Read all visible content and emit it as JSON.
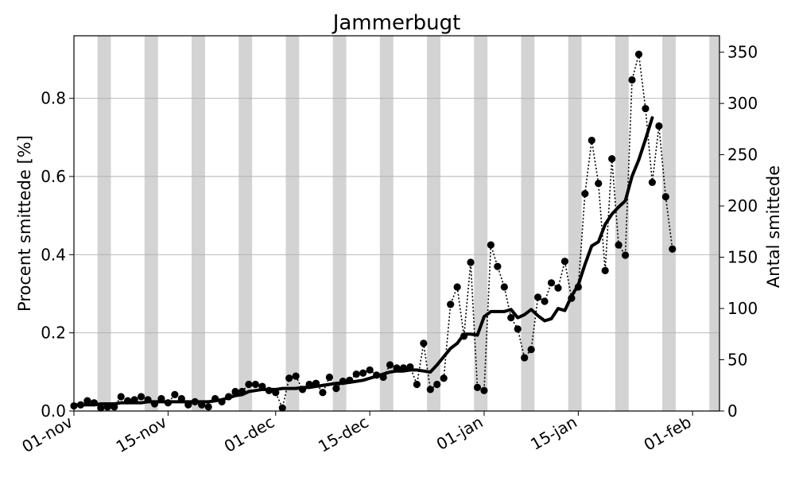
{
  "chart_data": {
    "type": "line",
    "title": "Jammerbugt",
    "ylabel_left": "Procent smittede [%]",
    "ylabel_right": "Antal smittede",
    "x_start": "2020-11-01",
    "x_range": [
      "2020-11-01",
      "2021-02-05"
    ],
    "ylim_left": [
      0,
      0.96
    ],
    "ylim_right": [
      0,
      366
    ],
    "yticks_left": [
      "0.0",
      "0.2",
      "0.4",
      "0.6",
      "0.8"
    ],
    "yticks_right": [
      "0",
      "50",
      "100",
      "150",
      "200",
      "250",
      "300",
      "350"
    ],
    "xticks": [
      {
        "date": "2020-11-01",
        "label": "01-nov"
      },
      {
        "date": "2020-11-15",
        "label": "15-nov"
      },
      {
        "date": "2020-12-01",
        "label": "01-dec"
      },
      {
        "date": "2020-12-15",
        "label": "15-dec"
      },
      {
        "date": "2021-01-01",
        "label": "01-jan"
      },
      {
        "date": "2021-01-15",
        "label": "15-jan"
      },
      {
        "date": "2021-02-01",
        "label": "01-feb"
      }
    ],
    "weekend_bands": [
      "2020-11-05",
      "2020-11-12",
      "2020-11-19",
      "2020-11-26",
      "2020-12-03",
      "2020-12-10",
      "2020-12-17",
      "2020-12-24",
      "2020-12-31",
      "2021-01-07",
      "2021-01-14",
      "2021-01-21",
      "2021-01-28",
      "2021-02-04"
    ],
    "grid": true,
    "series": [
      {
        "style": "dotted-markers",
        "axis": "right",
        "dates": [
          "2020-11-01",
          "2020-11-02",
          "2020-11-03",
          "2020-11-04",
          "2020-11-05",
          "2020-11-06",
          "2020-11-07",
          "2020-11-08",
          "2020-11-09",
          "2020-11-10",
          "2020-11-11",
          "2020-11-12",
          "2020-11-13",
          "2020-11-14",
          "2020-11-15",
          "2020-11-16",
          "2020-11-17",
          "2020-11-18",
          "2020-11-19",
          "2020-11-20",
          "2020-11-21",
          "2020-11-22",
          "2020-11-23",
          "2020-11-24",
          "2020-11-25",
          "2020-11-26",
          "2020-11-27",
          "2020-11-28",
          "2020-11-29",
          "2020-11-30",
          "2020-12-01",
          "2020-12-02",
          "2020-12-03",
          "2020-12-04",
          "2020-12-05",
          "2020-12-06",
          "2020-12-07",
          "2020-12-08",
          "2020-12-09",
          "2020-12-10",
          "2020-12-11",
          "2020-12-12",
          "2020-12-13",
          "2020-12-14",
          "2020-12-15",
          "2020-12-16",
          "2020-12-17",
          "2020-12-18",
          "2020-12-19",
          "2020-12-20",
          "2020-12-21",
          "2020-12-22",
          "2020-12-23",
          "2020-12-24",
          "2020-12-25",
          "2020-12-26",
          "2020-12-27",
          "2020-12-28",
          "2020-12-29",
          "2020-12-30",
          "2020-12-31",
          "2021-01-01",
          "2021-01-02",
          "2021-01-03",
          "2021-01-04",
          "2021-01-05",
          "2021-01-06",
          "2021-01-07",
          "2021-01-08",
          "2021-01-09",
          "2021-01-10",
          "2021-01-11",
          "2021-01-12",
          "2021-01-13",
          "2021-01-14",
          "2021-01-15",
          "2021-01-16",
          "2021-01-17",
          "2021-01-18",
          "2021-01-19",
          "2021-01-20",
          "2021-01-21",
          "2021-01-22",
          "2021-01-23",
          "2021-01-24",
          "2021-01-25",
          "2021-01-26",
          "2021-01-27",
          "2021-01-28",
          "2021-01-29"
        ],
        "values": [
          5,
          6,
          10,
          8,
          3,
          4,
          4,
          14,
          10,
          11,
          14,
          11,
          7,
          12,
          8,
          16,
          12,
          6,
          9,
          6,
          4,
          12,
          9,
          14,
          19,
          19,
          26,
          26,
          24,
          20,
          18,
          3,
          32,
          34,
          21,
          26,
          27,
          18,
          33,
          22,
          29,
          30,
          36,
          37,
          40,
          35,
          33,
          45,
          42,
          42,
          43,
          26,
          66,
          21,
          26,
          32,
          104,
          121,
          73,
          145,
          23,
          20,
          162,
          141,
          121,
          91,
          80,
          52,
          60,
          111,
          107,
          125,
          120,
          146,
          110,
          121,
          212,
          264,
          222,
          137,
          246,
          162,
          152,
          323,
          348,
          295,
          223,
          278,
          209,
          158
        ]
      },
      {
        "style": "solid-thick",
        "axis": "right",
        "dates": [
          "2020-11-01",
          "2020-11-02",
          "2020-11-03",
          "2020-11-04",
          "2020-11-05",
          "2020-11-06",
          "2020-11-07",
          "2020-11-08",
          "2020-11-09",
          "2020-11-10",
          "2020-11-11",
          "2020-11-12",
          "2020-11-13",
          "2020-11-14",
          "2020-11-15",
          "2020-11-16",
          "2020-11-17",
          "2020-11-18",
          "2020-11-19",
          "2020-11-20",
          "2020-11-21",
          "2020-11-22",
          "2020-11-23",
          "2020-11-24",
          "2020-11-25",
          "2020-11-26",
          "2020-11-27",
          "2020-11-28",
          "2020-11-29",
          "2020-11-30",
          "2020-12-01",
          "2020-12-02",
          "2020-12-03",
          "2020-12-04",
          "2020-12-05",
          "2020-12-06",
          "2020-12-07",
          "2020-12-08",
          "2020-12-09",
          "2020-12-10",
          "2020-12-11",
          "2020-12-12",
          "2020-12-13",
          "2020-12-14",
          "2020-12-15",
          "2020-12-16",
          "2020-12-17",
          "2020-12-18",
          "2020-12-19",
          "2020-12-20",
          "2020-12-21",
          "2020-12-22",
          "2020-12-23",
          "2020-12-24",
          "2020-12-25",
          "2020-12-26",
          "2020-12-27",
          "2020-12-28",
          "2020-12-29",
          "2020-12-30",
          "2020-12-31",
          "2021-01-01",
          "2021-01-02",
          "2021-01-03",
          "2021-01-04",
          "2021-01-05",
          "2021-01-06",
          "2021-01-07",
          "2021-01-08",
          "2021-01-09",
          "2021-01-10",
          "2021-01-11",
          "2021-01-12",
          "2021-01-13",
          "2021-01-14",
          "2021-01-15",
          "2021-01-16",
          "2021-01-17",
          "2021-01-18",
          "2021-01-19",
          "2021-01-20",
          "2021-01-21",
          "2021-01-22",
          "2021-01-23",
          "2021-01-24",
          "2021-01-25",
          "2021-01-26"
        ],
        "values": [
          6,
          6,
          6,
          6,
          7,
          7,
          7,
          8,
          8,
          8,
          8,
          9,
          9,
          9,
          9,
          9,
          9,
          9,
          9,
          9,
          9,
          10,
          11,
          13,
          15,
          16,
          19,
          20,
          21,
          21,
          21,
          22,
          22,
          22,
          23,
          23,
          24,
          25,
          26,
          27,
          27,
          28,
          29,
          30,
          32,
          34,
          36,
          38,
          39,
          39,
          40,
          40,
          39,
          38,
          45,
          53,
          61,
          66,
          75,
          75,
          74,
          92,
          97,
          97,
          97,
          99,
          91,
          94,
          99,
          93,
          88,
          90,
          100,
          98,
          112,
          123,
          143,
          161,
          165,
          182,
          192,
          199,
          205,
          229,
          245,
          265,
          286
        ]
      }
    ]
  }
}
